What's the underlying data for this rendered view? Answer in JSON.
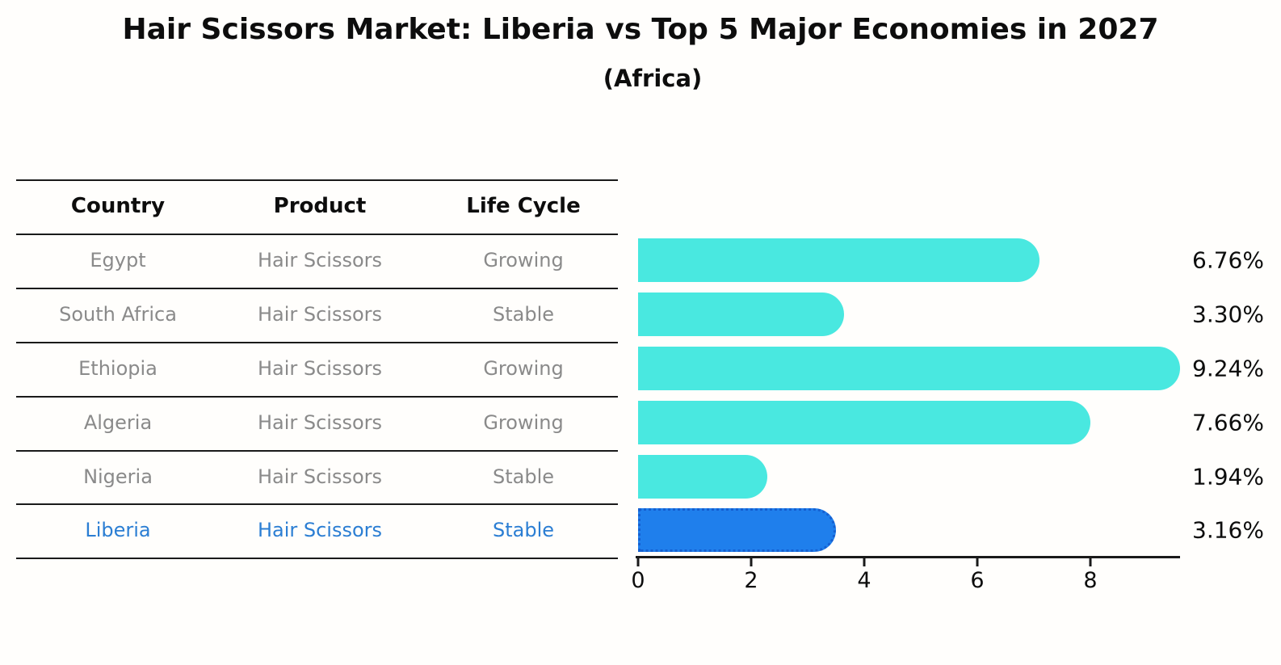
{
  "title": "Hair Scissors Market: Liberia vs Top 5 Major Economies in 2027",
  "subtitle": "(Africa)",
  "colors": {
    "bar_default": "#49E8E0",
    "bar_highlight": "#1F7FEC",
    "bar_highlight_border": "#155fd0",
    "table_text": "#8a8a8a",
    "highlight_text": "#2b7ed3",
    "heading_text": "#0d0d0d",
    "axis": "#1a1a1a"
  },
  "table": {
    "columns": [
      "Country",
      "Product",
      "Life Cycle"
    ],
    "rows": [
      {
        "country": "Egypt",
        "product": "Hair Scissors",
        "life_cycle": "Growing",
        "highlight": false
      },
      {
        "country": "South Africa",
        "product": "Hair Scissors",
        "life_cycle": "Stable",
        "highlight": false
      },
      {
        "country": "Ethiopia",
        "product": "Hair Scissors",
        "life_cycle": "Growing",
        "highlight": false
      },
      {
        "country": "Algeria",
        "product": "Hair Scissors",
        "life_cycle": "Growing",
        "highlight": false
      },
      {
        "country": "Nigeria",
        "product": "Hair Scissors",
        "life_cycle": "Stable",
        "highlight": false
      },
      {
        "country": "Liberia",
        "product": "Hair Scissors",
        "life_cycle": "Stable",
        "highlight": true
      }
    ]
  },
  "chart_data": {
    "type": "bar",
    "orientation": "horizontal",
    "title": "Hair Scissors Market: Liberia vs Top 5 Major Economies in 2027",
    "subtitle": "(Africa)",
    "categories": [
      "Egypt",
      "South Africa",
      "Ethiopia",
      "Algeria",
      "Nigeria",
      "Liberia"
    ],
    "values": [
      6.76,
      3.3,
      9.24,
      7.66,
      1.94,
      3.16
    ],
    "labels": [
      "6.76%",
      "3.30%",
      "9.24%",
      "7.66%",
      "1.94%",
      "3.16%"
    ],
    "highlight_category": "Liberia",
    "xlim": [
      0,
      9.7
    ],
    "xticks": [
      0,
      2,
      4,
      6,
      8
    ],
    "xlabel": "",
    "ylabel": "",
    "grid": false,
    "legend": false
  }
}
